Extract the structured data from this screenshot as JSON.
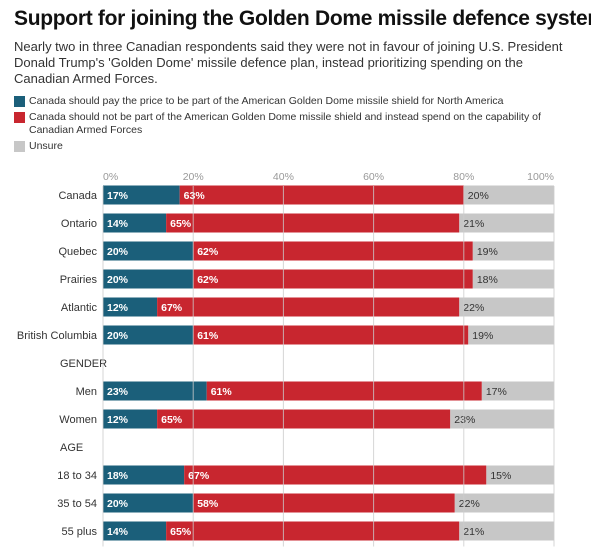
{
  "title": "Support for joining the Golden Dome missile defence system",
  "subtitle": "Nearly two in three Canadian respondents said they were not in favour of joining U.S. President Donald Trump's 'Golden Dome' missile defence plan, instead prioritizing spending on the Canadian Armed Forces.",
  "colors": {
    "pay": "#1b5f7a",
    "not": "#c8262f",
    "unsure": "#c7c7c7",
    "grid": "#cccccc",
    "tick": "#999999"
  },
  "chart_data": {
    "type": "bar",
    "orientation": "horizontal",
    "stacked": true,
    "xlim": [
      0,
      100
    ],
    "x_ticks": [
      "0%",
      "20%",
      "40%",
      "60%",
      "80%",
      "100%"
    ],
    "legend": [
      {
        "key": "pay",
        "label": "Canada should pay the price to be part of the American Golden Dome missile shield for North America"
      },
      {
        "key": "not",
        "label": "Canada should not be part of the American Golden Dome missile shield and instead spend on the capability of Canadian Armed Forces"
      },
      {
        "key": "unsure",
        "label": "Unsure"
      }
    ],
    "rows": [
      {
        "label": "Canada",
        "type": "bar",
        "values": [
          17,
          63,
          20
        ],
        "labels": [
          "17%",
          "63%",
          "20%"
        ]
      },
      {
        "label": "Ontario",
        "type": "bar",
        "values": [
          14,
          65,
          21
        ],
        "labels": [
          "14%",
          "65%",
          "21%"
        ]
      },
      {
        "label": "Quebec",
        "type": "bar",
        "values": [
          20,
          62,
          19
        ],
        "labels": [
          "20%",
          "62%",
          "19%"
        ]
      },
      {
        "label": "Prairies",
        "type": "bar",
        "values": [
          20,
          62,
          18
        ],
        "labels": [
          "20%",
          "62%",
          "18%"
        ]
      },
      {
        "label": "Atlantic",
        "type": "bar",
        "values": [
          12,
          67,
          22
        ],
        "labels": [
          "12%",
          "67%",
          "22%"
        ]
      },
      {
        "label": "British Columbia",
        "type": "bar",
        "values": [
          20,
          61,
          19
        ],
        "labels": [
          "20%",
          "61%",
          "19%"
        ]
      },
      {
        "label": "GENDER",
        "type": "header"
      },
      {
        "label": "Men",
        "type": "bar",
        "values": [
          23,
          61,
          17
        ],
        "labels": [
          "23%",
          "61%",
          "17%"
        ]
      },
      {
        "label": "Women",
        "type": "bar",
        "values": [
          12,
          65,
          23
        ],
        "labels": [
          "12%",
          "65%",
          "23%"
        ]
      },
      {
        "label": "AGE",
        "type": "header"
      },
      {
        "label": "18 to 34",
        "type": "bar",
        "values": [
          18,
          67,
          15
        ],
        "labels": [
          "18%",
          "67%",
          "15%"
        ]
      },
      {
        "label": "35 to 54",
        "type": "bar",
        "values": [
          20,
          58,
          22
        ],
        "labels": [
          "20%",
          "58%",
          "22%"
        ]
      },
      {
        "label": "55 plus",
        "type": "bar",
        "values": [
          14,
          65,
          21
        ],
        "labels": [
          "14%",
          "65%",
          "21%"
        ]
      }
    ]
  }
}
